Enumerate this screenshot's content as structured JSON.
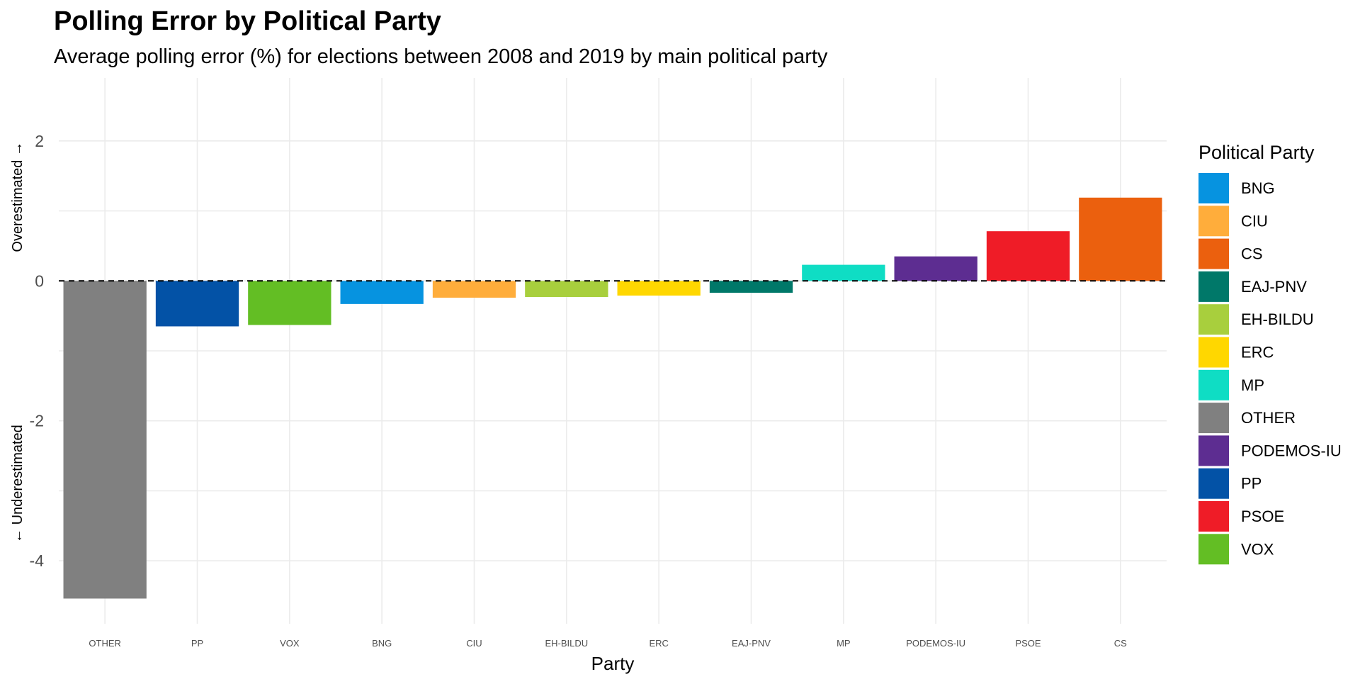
{
  "chart_data": {
    "type": "bar",
    "title": "Polling Error by Political Party",
    "subtitle": "Average polling error (%) for elections between 2008 and 2019 by main political party",
    "xlabel": "Party",
    "ylabel_top": "Overestimated →",
    "ylabel_bottom": "← Underestimated",
    "ylim": [
      -4.9,
      2.9
    ],
    "yticks": [
      -4,
      -2,
      0,
      2
    ],
    "grid": true,
    "reference_line": {
      "y": 0,
      "style": "dashed"
    },
    "categories": [
      "OTHER",
      "PP",
      "VOX",
      "BNG",
      "CIU",
      "EH-BILDU",
      "ERC",
      "EAJ-PNV",
      "MP",
      "PODEMOS-IU",
      "PSOE",
      "CS"
    ],
    "values": [
      -4.54,
      -0.65,
      -0.63,
      -0.33,
      -0.24,
      -0.23,
      -0.21,
      -0.17,
      0.23,
      0.35,
      0.71,
      1.19
    ],
    "colors": [
      "#808080",
      "#0352A6",
      "#63BE24",
      "#0693E0",
      "#FFAD3B",
      "#A8CF3D",
      "#FFD700",
      "#007869",
      "#0FDDC4",
      "#5D2D91",
      "#EF1C27",
      "#EB600E"
    ],
    "legend": {
      "title": "Political Party",
      "position": "right",
      "entries": [
        {
          "label": "BNG",
          "color": "#0693E0"
        },
        {
          "label": "CIU",
          "color": "#FFAD3B"
        },
        {
          "label": "CS",
          "color": "#EB600E"
        },
        {
          "label": "EAJ-PNV",
          "color": "#007869"
        },
        {
          "label": "EH-BILDU",
          "color": "#A8CF3D"
        },
        {
          "label": "ERC",
          "color": "#FFD700"
        },
        {
          "label": "MP",
          "color": "#0FDDC4"
        },
        {
          "label": "OTHER",
          "color": "#808080"
        },
        {
          "label": "PODEMOS-IU",
          "color": "#5D2D91"
        },
        {
          "label": "PP",
          "color": "#0352A6"
        },
        {
          "label": "PSOE",
          "color": "#EF1C27"
        },
        {
          "label": "VOX",
          "color": "#63BE24"
        }
      ]
    }
  }
}
